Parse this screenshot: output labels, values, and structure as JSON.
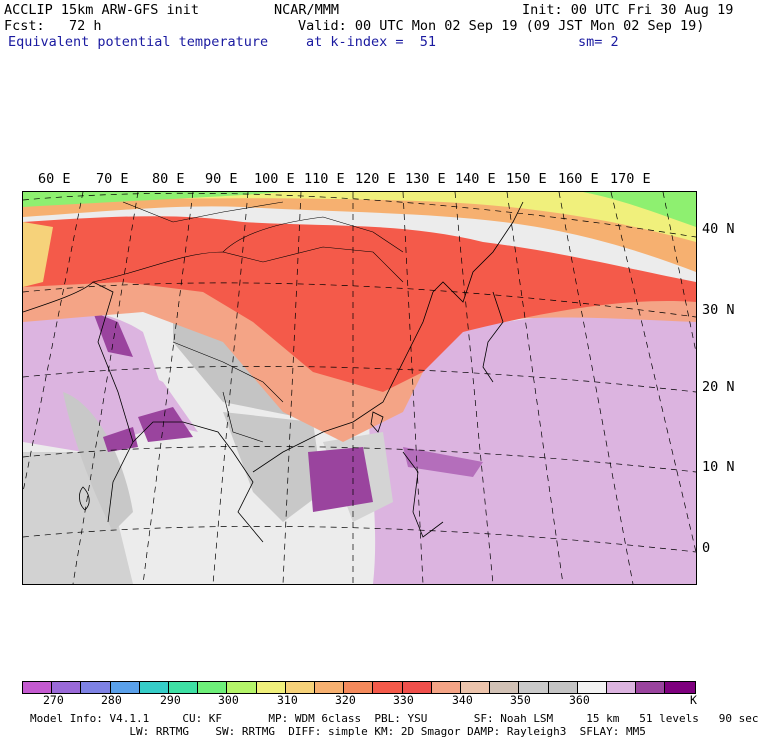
{
  "header": {
    "line1_left": "ACCLIP 15km ARW-GFS init",
    "line1_center": "NCAR/MMM",
    "line1_right": "Init: 00 UTC Fri 30 Aug 19",
    "line2_left": "Fcst:   72 h",
    "line2_right": "Valid: 00 UTC Mon 02 Sep 19 (09 JST Mon 02 Sep 19)",
    "line3_field": "Equivalent potential temperature",
    "line3_level": "at k-index =  51",
    "line3_smooth": "sm= 2"
  },
  "map": {
    "lon_labels": [
      "60 E",
      "70 E",
      "80 E",
      "90 E",
      "100 E",
      "110 E",
      "120 E",
      "130 E",
      "140 E",
      "150 E",
      "160 E",
      "170 E"
    ],
    "lat_labels": [
      "40 N",
      "30 N",
      "20 N",
      "10 N",
      "0"
    ]
  },
  "colorbar": {
    "colors": [
      "#c45ad0",
      "#9a6ad8",
      "#7e82e4",
      "#5aa0ea",
      "#36cdc8",
      "#3ee0a4",
      "#6ef07a",
      "#b4f46a",
      "#f0f07c",
      "#f6d27a",
      "#f6b070",
      "#f48a5c",
      "#f45a4a",
      "#f0504c",
      "#f4a486",
      "#ecc4ac",
      "#d2c2b6",
      "#cacaca",
      "#c4c4c4",
      "#f2f2f2",
      "#dcb4e0",
      "#9a449e",
      "#7e007e"
    ],
    "tick_labels": [
      "270",
      "280",
      "290",
      "300",
      "310",
      "320",
      "330",
      "340",
      "350",
      "360"
    ],
    "unit": "K"
  },
  "footer": {
    "line1": "Model Info: V4.1.1     CU: KF       MP: WDM 6class  PBL: YSU       SF: Noah LSM     15 km   51 levels   90 sec",
    "line2": "               LW: RRTMG    SW: RRTMG  DIFF: simple KM: 2D Smagor DAMP: Rayleigh3  SFLAY: MM5"
  }
}
